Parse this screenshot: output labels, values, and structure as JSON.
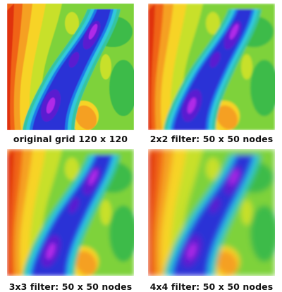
{
  "panels": [
    {
      "caption": "original grid 120 x 120"
    },
    {
      "caption": "2x2 filter: 50 x 50 nodes"
    },
    {
      "caption": "3x3 filter: 50 x 50 nodes"
    },
    {
      "caption": "4x4 filter: 50 x 50 nodes"
    }
  ],
  "colormap": [
    "#e03010",
    "#f06418",
    "#f5a020",
    "#f7d327",
    "#c8e02a",
    "#7ed23a",
    "#3dbb4a",
    "#35c4a0",
    "#30c8dc",
    "#1e7be8",
    "#2a30d6",
    "#5a1fd0",
    "#b02ce8"
  ]
}
